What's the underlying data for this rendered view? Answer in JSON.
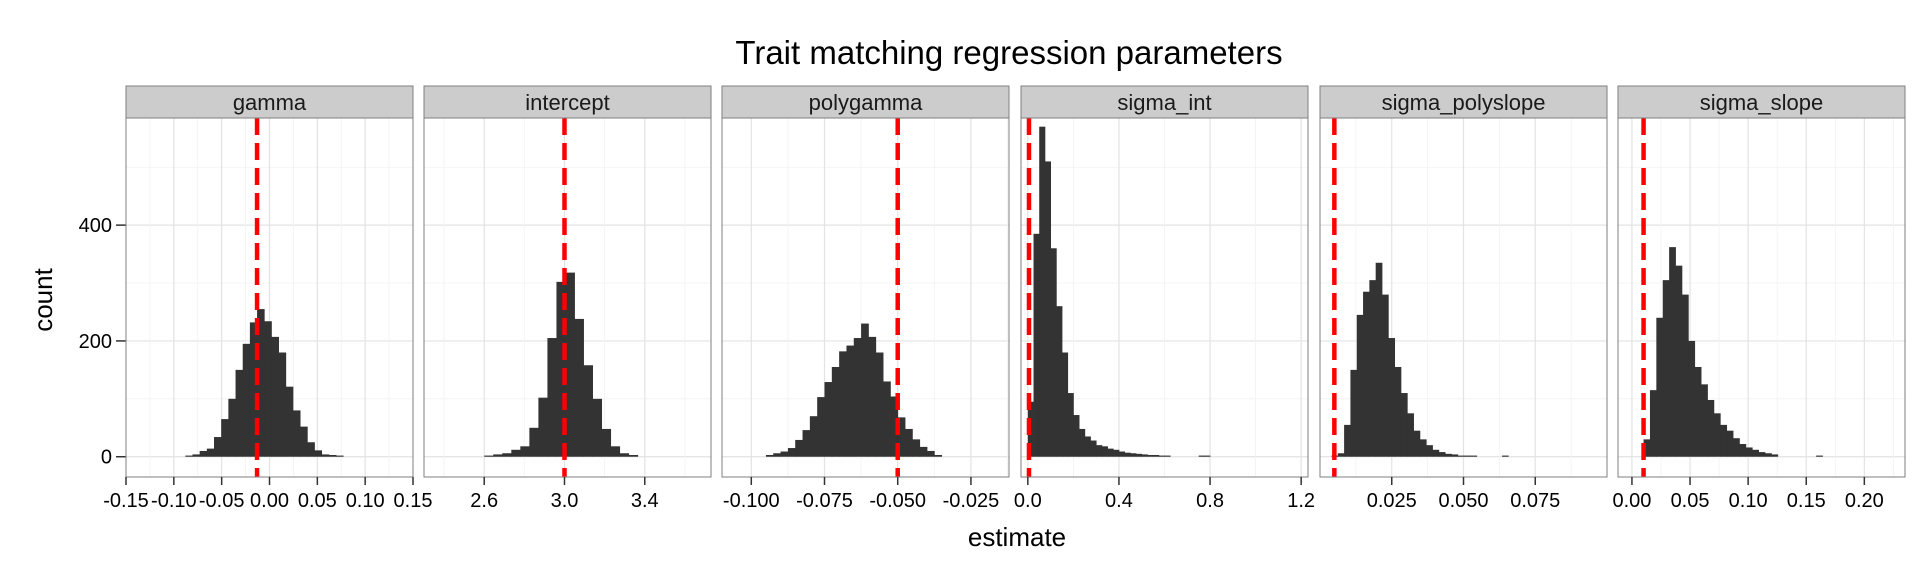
{
  "chart_data": {
    "type": "bar",
    "title": "Trait matching regression parameters",
    "xlabel": "estimate",
    "ylabel": "count",
    "ylim": [
      -35,
      585
    ],
    "y_ticks": [
      0,
      200,
      400
    ],
    "grid": true,
    "reference_line_color": "#ff0000",
    "bar_color": "#333333",
    "panel_background": "#ffffff",
    "strip_background": "#cccccc",
    "panels": [
      {
        "name": "gamma",
        "xlim": [
          -0.15,
          0.15
        ],
        "x_ticks": [
          -0.15,
          -0.1,
          -0.05,
          0.0,
          0.05,
          0.1,
          0.15
        ],
        "x_tick_labels": [
          "-0.15",
          "-0.10",
          "-0.05",
          "0.00",
          "0.05",
          "0.10",
          "0.15"
        ],
        "reference_line": -0.013,
        "bin_start": -0.088,
        "bin_width": 0.0075,
        "counts": [
          2,
          4,
          10,
          14,
          34,
          65,
          100,
          150,
          195,
          232,
          255,
          234,
          207,
          180,
          121,
          80,
          52,
          25,
          11,
          4,
          3,
          2
        ]
      },
      {
        "name": "intercept",
        "xlim": [
          2.3,
          3.73
        ],
        "x_ticks": [
          2.6,
          3.0,
          3.4
        ],
        "x_tick_labels": [
          "2.6",
          "3.0",
          "3.4"
        ],
        "reference_line": 3.0,
        "bin_start": 2.6,
        "bin_width": 0.045,
        "counts": [
          2,
          4,
          6,
          12,
          18,
          50,
          102,
          205,
          302,
          318,
          238,
          158,
          100,
          48,
          18,
          6,
          3
        ]
      },
      {
        "name": "polygamma",
        "xlim": [
          -0.11,
          -0.012
        ],
        "x_ticks": [
          -0.1,
          -0.075,
          -0.05,
          -0.025
        ],
        "x_tick_labels": [
          "-0.100",
          "-0.075",
          "-0.050",
          "-0.025"
        ],
        "reference_line": -0.05,
        "bin_start": -0.095,
        "bin_width": 0.0025,
        "counts": [
          3,
          6,
          9,
          15,
          29,
          46,
          70,
          103,
          129,
          155,
          182,
          192,
          205,
          230,
          207,
          180,
          130,
          104,
          68,
          48,
          30,
          17,
          10,
          3
        ]
      },
      {
        "name": "sigma_int",
        "xlim": [
          -0.03,
          1.23
        ],
        "x_ticks": [
          0.0,
          0.4,
          0.8,
          1.2
        ],
        "x_tick_labels": [
          "0.0",
          "0.4",
          "0.8",
          "1.2"
        ],
        "reference_line": 0.005,
        "bin_start": 0.0,
        "bin_width": 0.025,
        "counts": [
          95,
          385,
          570,
          510,
          360,
          260,
          180,
          110,
          72,
          48,
          35,
          28,
          20,
          18,
          14,
          12,
          9,
          7,
          6,
          5,
          4,
          3,
          3,
          2,
          2,
          0,
          0,
          0,
          0,
          0,
          2,
          2
        ]
      },
      {
        "name": "sigma_polyslope",
        "xlim": [
          0.0,
          0.1
        ],
        "x_ticks": [
          0.025,
          0.05,
          0.075
        ],
        "x_tick_labels": [
          "0.025",
          "0.050",
          "0.075"
        ],
        "reference_line": 0.005,
        "bin_start": 0.004,
        "bin_width": 0.0022,
        "counts": [
          2,
          6,
          55,
          150,
          245,
          285,
          305,
          335,
          280,
          205,
          155,
          110,
          75,
          45,
          30,
          20,
          12,
          8,
          5,
          4,
          2,
          2,
          2,
          0,
          0,
          0,
          0,
          2
        ]
      },
      {
        "name": "sigma_slope",
        "xlim": [
          -0.012,
          0.235
        ],
        "x_ticks": [
          0.0,
          0.05,
          0.1,
          0.15,
          0.2
        ],
        "x_tick_labels": [
          "0.00",
          "0.05",
          "0.10",
          "0.15",
          "0.20"
        ],
        "reference_line": 0.01,
        "bin_start": 0.01,
        "bin_width": 0.0055,
        "counts": [
          30,
          115,
          240,
          305,
          362,
          330,
          280,
          200,
          155,
          125,
          98,
          75,
          55,
          45,
          32,
          22,
          16,
          12,
          8,
          6,
          4,
          0,
          0,
          0,
          0,
          0,
          0,
          2
        ]
      }
    ]
  }
}
